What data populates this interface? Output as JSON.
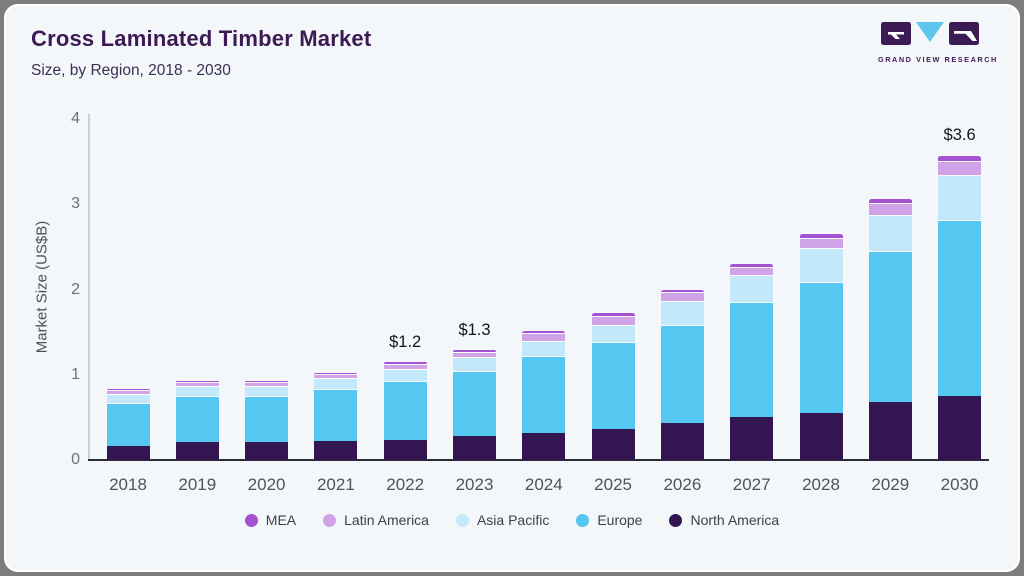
{
  "header": {
    "title": "Cross Laminated Timber Market",
    "subtitle": "Size, by Region, 2018 - 2030"
  },
  "logo": {
    "name": "grand-view-research-logo",
    "caption": "GRAND VIEW RESEARCH",
    "brand_dark": "#3c1a53",
    "brand_blue": "#5ec6ee"
  },
  "chart_data": {
    "type": "bar",
    "stacked": true,
    "title": "Cross Laminated Timber Market",
    "subtitle": "Size, by Region, 2018 - 2030",
    "ylabel": "Market Size (US$B)",
    "ylim": [
      0,
      4
    ],
    "yticks": [
      0,
      1,
      2,
      3,
      4
    ],
    "grid": false,
    "legend_position": "bottom",
    "categories": [
      "2018",
      "2019",
      "2020",
      "2021",
      "2022",
      "2023",
      "2024",
      "2025",
      "2026",
      "2027",
      "2028",
      "2029",
      "2030"
    ],
    "series": [
      {
        "name": "North America",
        "color": "#321551",
        "values": [
          0.17,
          0.21,
          0.21,
          0.22,
          0.24,
          0.28,
          0.32,
          0.36,
          0.43,
          0.5,
          0.55,
          0.68,
          0.75
        ]
      },
      {
        "name": "Europe",
        "color": "#56c7f0",
        "values": [
          0.5,
          0.54,
          0.54,
          0.61,
          0.69,
          0.77,
          0.9,
          1.03,
          1.16,
          1.35,
          1.54,
          1.77,
          2.07
        ]
      },
      {
        "name": "Asia Pacific",
        "color": "#c2e8f9",
        "values": [
          0.1,
          0.12,
          0.12,
          0.13,
          0.14,
          0.16,
          0.18,
          0.19,
          0.28,
          0.32,
          0.4,
          0.42,
          0.53
        ]
      },
      {
        "name": "Latin America",
        "color": "#cfa3e6",
        "values": [
          0.05,
          0.05,
          0.05,
          0.05,
          0.06,
          0.06,
          0.09,
          0.11,
          0.1,
          0.1,
          0.12,
          0.15,
          0.16
        ]
      },
      {
        "name": "MEA",
        "color": "#a452d1",
        "values": [
          0.01,
          0.01,
          0.01,
          0.01,
          0.02,
          0.02,
          0.04,
          0.05,
          0.04,
          0.04,
          0.05,
          0.06,
          0.07
        ]
      }
    ],
    "totals": [
      0.83,
      0.93,
      0.93,
      1.02,
      1.15,
      1.29,
      1.53,
      1.74,
      2.01,
      2.31,
      2.66,
      3.08,
      3.58
    ],
    "bar_labels": {
      "2022": "$1.2",
      "2023": "$1.3",
      "2030": "$3.6"
    },
    "legend_order": [
      "MEA",
      "Latin America",
      "Asia Pacific",
      "Europe",
      "North America"
    ]
  }
}
